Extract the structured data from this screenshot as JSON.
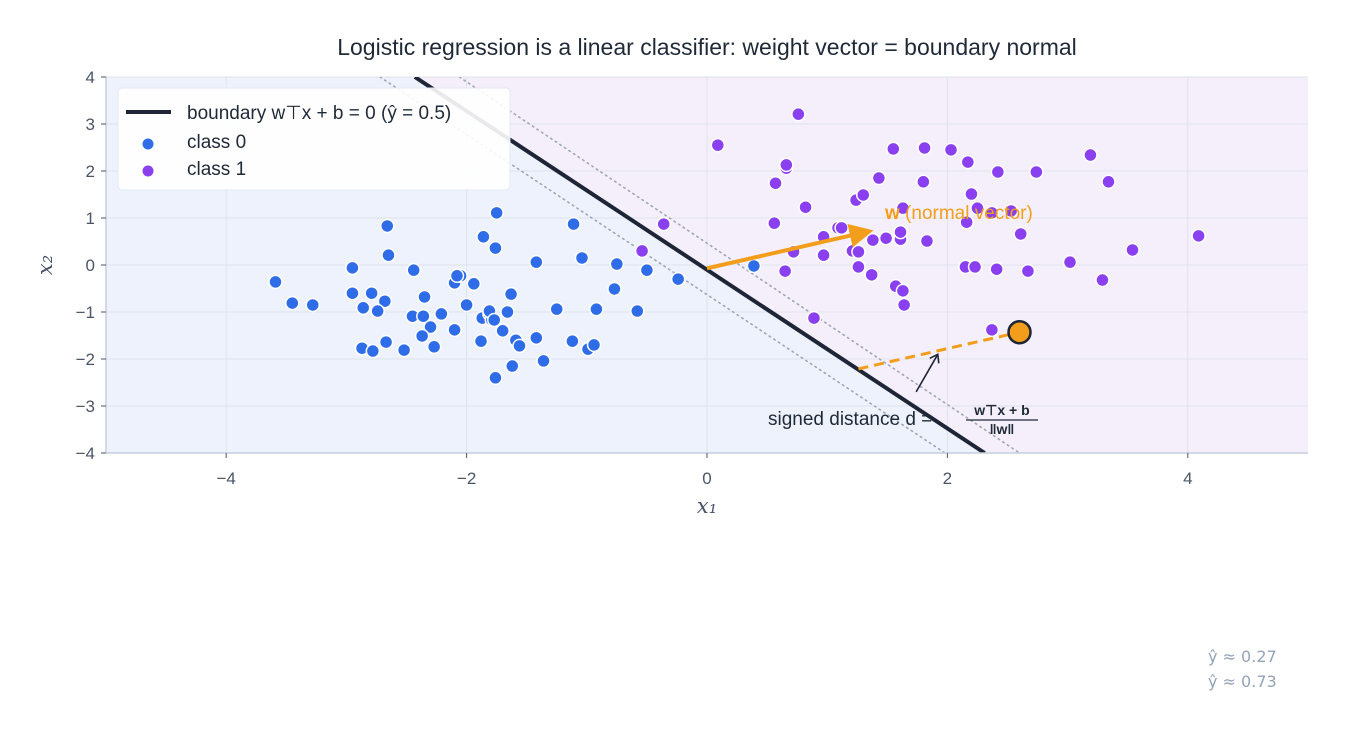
{
  "chart_data": {
    "type": "scatter",
    "title": "Logistic regression is a linear classifier: weight vector = boundary normal",
    "xlabel": "x₁",
    "ylabel": "x₂",
    "xlim": [
      -5,
      5
    ],
    "ylim": [
      -4,
      4
    ],
    "xticks": [
      -4,
      -2,
      0,
      2,
      4
    ],
    "yticks": [
      -4,
      -3,
      -2,
      -1,
      0,
      1,
      2,
      3,
      4
    ],
    "grid": true,
    "legend_position": "top-left",
    "colors": {
      "class0": "#2f6de8",
      "class1": "#8a3ff0",
      "boundary": "#1e2536",
      "accent": "#f29e1a",
      "region0": "#edf2fc",
      "region1": "#f4effb",
      "contour": "#a0a7b4"
    },
    "legend": {
      "boundary": "boundary w⊤x + b = 0 (ŷ = 0.5)",
      "class0": "class 0",
      "class1": "class 1"
    },
    "boundary": [
      [
        -2.43,
        4
      ],
      [
        2.31,
        -4
      ]
    ],
    "contours": [
      {
        "label": "ŷ ≈ 0.27",
        "line": [
          [
            -2.72,
            4
          ],
          [
            1.98,
            -4
          ]
        ]
      },
      {
        "label": "ŷ ≈ 0.73",
        "line": [
          [
            -2.06,
            4
          ],
          [
            2.6,
            -4
          ]
        ]
      }
    ],
    "weight_vector": {
      "from": [
        0,
        -0.07
      ],
      "to": [
        1.32,
        0.7
      ],
      "label_bold": "w",
      "label": " (normal vector)"
    },
    "query_point": {
      "point": [
        2.6,
        -1.43
      ],
      "foot": [
        1.26,
        -2.21
      ]
    },
    "distance_annotation": {
      "text": "signed distance d =",
      "numerator": "w⊤x + b",
      "denominator": "‖w‖",
      "arrow_from": [
        1.74,
        -2.7
      ],
      "arrow_to": [
        1.92,
        -1.9
      ]
    },
    "series": [
      {
        "name": "class 0",
        "points": [
          [
            -3.59,
            -0.36
          ],
          [
            -3.45,
            -0.81
          ],
          [
            -3.28,
            -0.85
          ],
          [
            -2.66,
            0.83
          ],
          [
            -2.65,
            0.21
          ],
          [
            -2.95,
            -0.06
          ],
          [
            -2.44,
            -0.11
          ],
          [
            -2.95,
            -0.6
          ],
          [
            -2.79,
            -0.6
          ],
          [
            -2.68,
            -0.77
          ],
          [
            -2.86,
            -0.91
          ],
          [
            -2.74,
            -0.98
          ],
          [
            -2.45,
            -1.09
          ],
          [
            -2.35,
            -0.68
          ],
          [
            -2.36,
            -1.09
          ],
          [
            -2.21,
            -1.04
          ],
          [
            -2.3,
            -1.32
          ],
          [
            -2.37,
            -1.51
          ],
          [
            -2.67,
            -1.64
          ],
          [
            -2.27,
            -1.74
          ],
          [
            -2.87,
            -1.77
          ],
          [
            -2.78,
            -1.83
          ],
          [
            -2.52,
            -1.81
          ],
          [
            -2.1,
            -0.38
          ],
          [
            -2.05,
            -0.23
          ],
          [
            -2.08,
            -0.23
          ],
          [
            -1.94,
            -0.4
          ],
          [
            -2.0,
            -0.85
          ],
          [
            -2.1,
            -1.38
          ],
          [
            -1.87,
            -1.13
          ],
          [
            -1.86,
            0.6
          ],
          [
            -1.75,
            1.11
          ],
          [
            -1.76,
            0.36
          ],
          [
            -1.88,
            -1.62
          ],
          [
            -1.81,
            -1.04
          ],
          [
            -1.79,
            -1.17
          ],
          [
            -1.81,
            -0.98
          ],
          [
            -1.77,
            -1.17
          ],
          [
            -1.7,
            -1.4
          ],
          [
            -1.66,
            -1.0
          ],
          [
            -1.63,
            -0.62
          ],
          [
            -1.59,
            -1.6
          ],
          [
            -1.56,
            -1.72
          ],
          [
            -1.62,
            -2.15
          ],
          [
            -1.76,
            -2.4
          ],
          [
            -1.42,
            0.06
          ],
          [
            -1.36,
            -2.04
          ],
          [
            -1.42,
            -1.55
          ],
          [
            -1.25,
            -0.94
          ],
          [
            -1.11,
            0.87
          ],
          [
            -1.12,
            -1.62
          ],
          [
            -1.04,
            0.15
          ],
          [
            -0.99,
            -1.79
          ],
          [
            -0.94,
            -1.7
          ],
          [
            -0.92,
            -0.94
          ],
          [
            -0.77,
            -0.51
          ],
          [
            -0.75,
            0.02
          ],
          [
            -0.58,
            -0.98
          ],
          [
            -0.5,
            -0.11
          ],
          [
            -0.24,
            -0.3
          ],
          [
            0.39,
            -0.02
          ]
        ]
      },
      {
        "name": "class 1",
        "points": [
          [
            -0.54,
            0.3
          ],
          [
            -0.36,
            0.87
          ],
          [
            0.09,
            2.55
          ],
          [
            0.66,
            2.06
          ],
          [
            0.66,
            2.13
          ],
          [
            0.76,
            3.21
          ],
          [
            0.57,
            1.74
          ],
          [
            0.56,
            0.89
          ],
          [
            0.82,
            1.23
          ],
          [
            0.65,
            -0.13
          ],
          [
            0.72,
            0.28
          ],
          [
            0.97,
            0.6
          ],
          [
            0.97,
            0.21
          ],
          [
            0.89,
            -1.13
          ],
          [
            1.09,
            0.79
          ],
          [
            1.12,
            0.79
          ],
          [
            1.24,
            1.38
          ],
          [
            1.3,
            1.49
          ],
          [
            1.21,
            0.3
          ],
          [
            1.26,
            0.28
          ],
          [
            1.38,
            0.53
          ],
          [
            1.26,
            -0.04
          ],
          [
            1.37,
            -0.21
          ],
          [
            1.43,
            1.85
          ],
          [
            1.49,
            0.57
          ],
          [
            1.55,
            2.47
          ],
          [
            1.61,
            0.55
          ],
          [
            1.57,
            -0.45
          ],
          [
            1.63,
            -0.55
          ],
          [
            1.64,
            -0.85
          ],
          [
            1.63,
            1.21
          ],
          [
            1.61,
            0.7
          ],
          [
            1.81,
            2.49
          ],
          [
            1.8,
            1.77
          ],
          [
            1.83,
            0.51
          ],
          [
            2.03,
            2.45
          ],
          [
            2.17,
            2.19
          ],
          [
            2.2,
            1.51
          ],
          [
            2.16,
            0.91
          ],
          [
            2.15,
            -0.04
          ],
          [
            2.23,
            -0.04
          ],
          [
            2.42,
            1.98
          ],
          [
            2.25,
            1.21
          ],
          [
            2.37,
            1.11
          ],
          [
            2.53,
            1.15
          ],
          [
            2.41,
            -0.09
          ],
          [
            2.61,
            0.66
          ],
          [
            2.67,
            -0.13
          ],
          [
            2.74,
            1.98
          ],
          [
            3.02,
            0.06
          ],
          [
            3.19,
            2.34
          ],
          [
            3.34,
            1.77
          ],
          [
            3.29,
            -0.32
          ],
          [
            3.54,
            0.32
          ],
          [
            4.09,
            0.62
          ],
          [
            2.37,
            -1.38
          ]
        ]
      }
    ]
  }
}
